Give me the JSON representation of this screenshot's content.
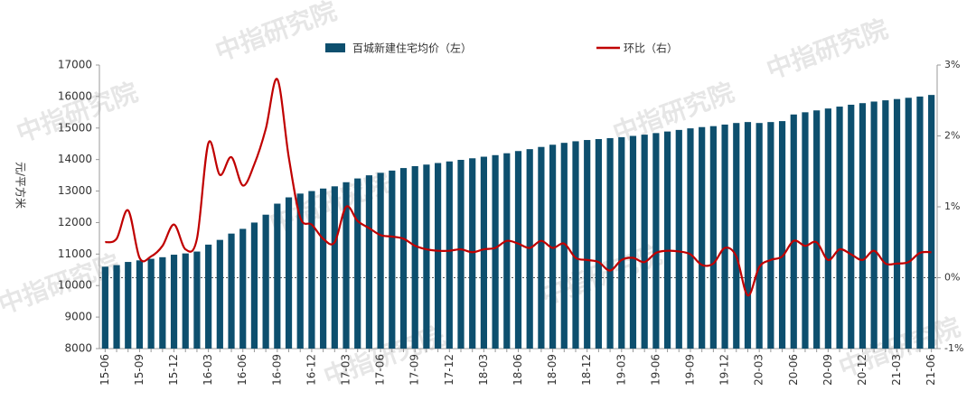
{
  "chart_data": {
    "type": "bar-line",
    "y_label": "元/平方米",
    "watermark": "中指研究院",
    "categories": [
      "15-06",
      null,
      null,
      "15-09",
      null,
      null,
      "15-12",
      null,
      null,
      "16-03",
      null,
      null,
      "16-06",
      null,
      null,
      "16-09",
      null,
      null,
      "16-12",
      null,
      null,
      "17-03",
      null,
      null,
      "17-06",
      null,
      null,
      "17-09",
      null,
      null,
      "17-12",
      null,
      null,
      "18-03",
      null,
      null,
      "18-06",
      null,
      null,
      "18-09",
      null,
      null,
      "18-12",
      null,
      null,
      "19-03",
      null,
      null,
      "19-06",
      null,
      null,
      "19-09",
      null,
      null,
      "19-12",
      null,
      null,
      "20-03",
      null,
      null,
      "20-06",
      null,
      null,
      "20-09",
      null,
      null,
      "20-12",
      null,
      null,
      "21-03",
      null,
      null,
      "21-06"
    ],
    "series": [
      {
        "name": "百城新建住宅均价（左）",
        "color": "#0d4f6e",
        "type": "bar",
        "values": [
          10600,
          10650,
          10750,
          10800,
          10850,
          10900,
          10980,
          11020,
          11080,
          11300,
          11450,
          11650,
          11800,
          12000,
          12250,
          12600,
          12800,
          12920,
          13000,
          13080,
          13150,
          13280,
          13400,
          13500,
          13580,
          13650,
          13730,
          13790,
          13840,
          13890,
          13940,
          13990,
          14040,
          14090,
          14140,
          14200,
          14270,
          14330,
          14400,
          14470,
          14530,
          14580,
          14620,
          14650,
          14680,
          14710,
          14750,
          14790,
          14840,
          14890,
          14940,
          14990,
          15030,
          15060,
          15110,
          15160,
          15190,
          15160,
          15190,
          15220,
          15430,
          15500,
          15560,
          15620,
          15680,
          15740,
          15790,
          15840,
          15880,
          15920,
          15960,
          16000,
          16050
        ]
      },
      {
        "name": "环比（右）",
        "color": "#c00000",
        "type": "line",
        "axis": "y2",
        "values": [
          0.5,
          0.55,
          0.95,
          0.28,
          0.3,
          0.45,
          0.75,
          0.4,
          0.55,
          1.9,
          1.45,
          1.7,
          1.3,
          1.6,
          2.1,
          2.8,
          1.7,
          0.85,
          0.75,
          0.55,
          0.5,
          1.0,
          0.8,
          0.7,
          0.6,
          0.58,
          0.55,
          0.45,
          0.4,
          0.38,
          0.38,
          0.4,
          0.36,
          0.4,
          0.42,
          0.52,
          0.48,
          0.42,
          0.52,
          0.42,
          0.48,
          0.28,
          0.25,
          0.22,
          0.1,
          0.25,
          0.28,
          0.22,
          0.35,
          0.38,
          0.37,
          0.33,
          0.18,
          0.2,
          0.42,
          0.3,
          -0.25,
          0.15,
          0.25,
          0.3,
          0.52,
          0.45,
          0.5,
          0.25,
          0.4,
          0.33,
          0.25,
          0.38,
          0.2,
          0.2,
          0.22,
          0.35,
          0.36
        ]
      }
    ],
    "ylim": [
      8000,
      17000
    ],
    "yticks": [
      8000,
      9000,
      10000,
      11000,
      12000,
      13000,
      14000,
      15000,
      16000,
      17000
    ],
    "y2lim": [
      -1,
      3
    ],
    "y2ticks": [
      {
        "value": -1,
        "label": "-1%"
      },
      {
        "value": 0,
        "label": "0%"
      },
      {
        "value": 1,
        "label": "1%"
      },
      {
        "value": 2,
        "label": "2%"
      },
      {
        "value": 3,
        "label": "3%"
      }
    ],
    "legend": "top"
  }
}
